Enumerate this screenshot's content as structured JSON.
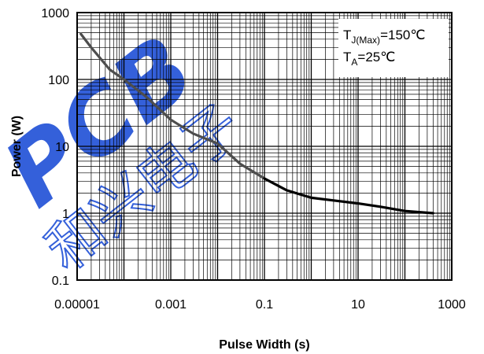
{
  "chart_data": {
    "type": "line",
    "xlabel": "Pulse Width (s)",
    "ylabel": "Power (W)",
    "x_scale": "log",
    "y_scale": "log",
    "xlim": [
      1e-05,
      1000
    ],
    "ylim": [
      0.1,
      1000
    ],
    "x_tick_labels": [
      "0.00001",
      "0.001",
      "0.1",
      "10",
      "1000"
    ],
    "y_tick_labels": [
      "1000",
      "100",
      "10",
      "1",
      "0.1"
    ],
    "grid": true,
    "legend_placement": "top-right",
    "annotation": {
      "line1_main": "T",
      "line1_sub": "J(Max)",
      "line1_rest": "=150℃",
      "line2_main": "T",
      "line2_sub": "A",
      "line2_rest": "=25℃"
    },
    "series": [
      {
        "x": [
          1.2e-05,
          2e-05,
          5e-05,
          0.0001,
          0.0003,
          0.001,
          0.003,
          0.01,
          0.03,
          0.1,
          0.3,
          1,
          3,
          10,
          30,
          100,
          400
        ],
        "y": [
          480,
          300,
          140,
          100,
          55,
          25,
          15.5,
          11,
          5.5,
          3.3,
          2.2,
          1.7,
          1.55,
          1.4,
          1.25,
          1.08,
          1.0
        ]
      }
    ],
    "colors": {
      "line_dark": "#4d4d4d",
      "line_black": "#000000",
      "grid": "#000000",
      "watermark": "#1f4fd6"
    },
    "watermark_text": [
      "PCB",
      "和兴电子"
    ]
  }
}
